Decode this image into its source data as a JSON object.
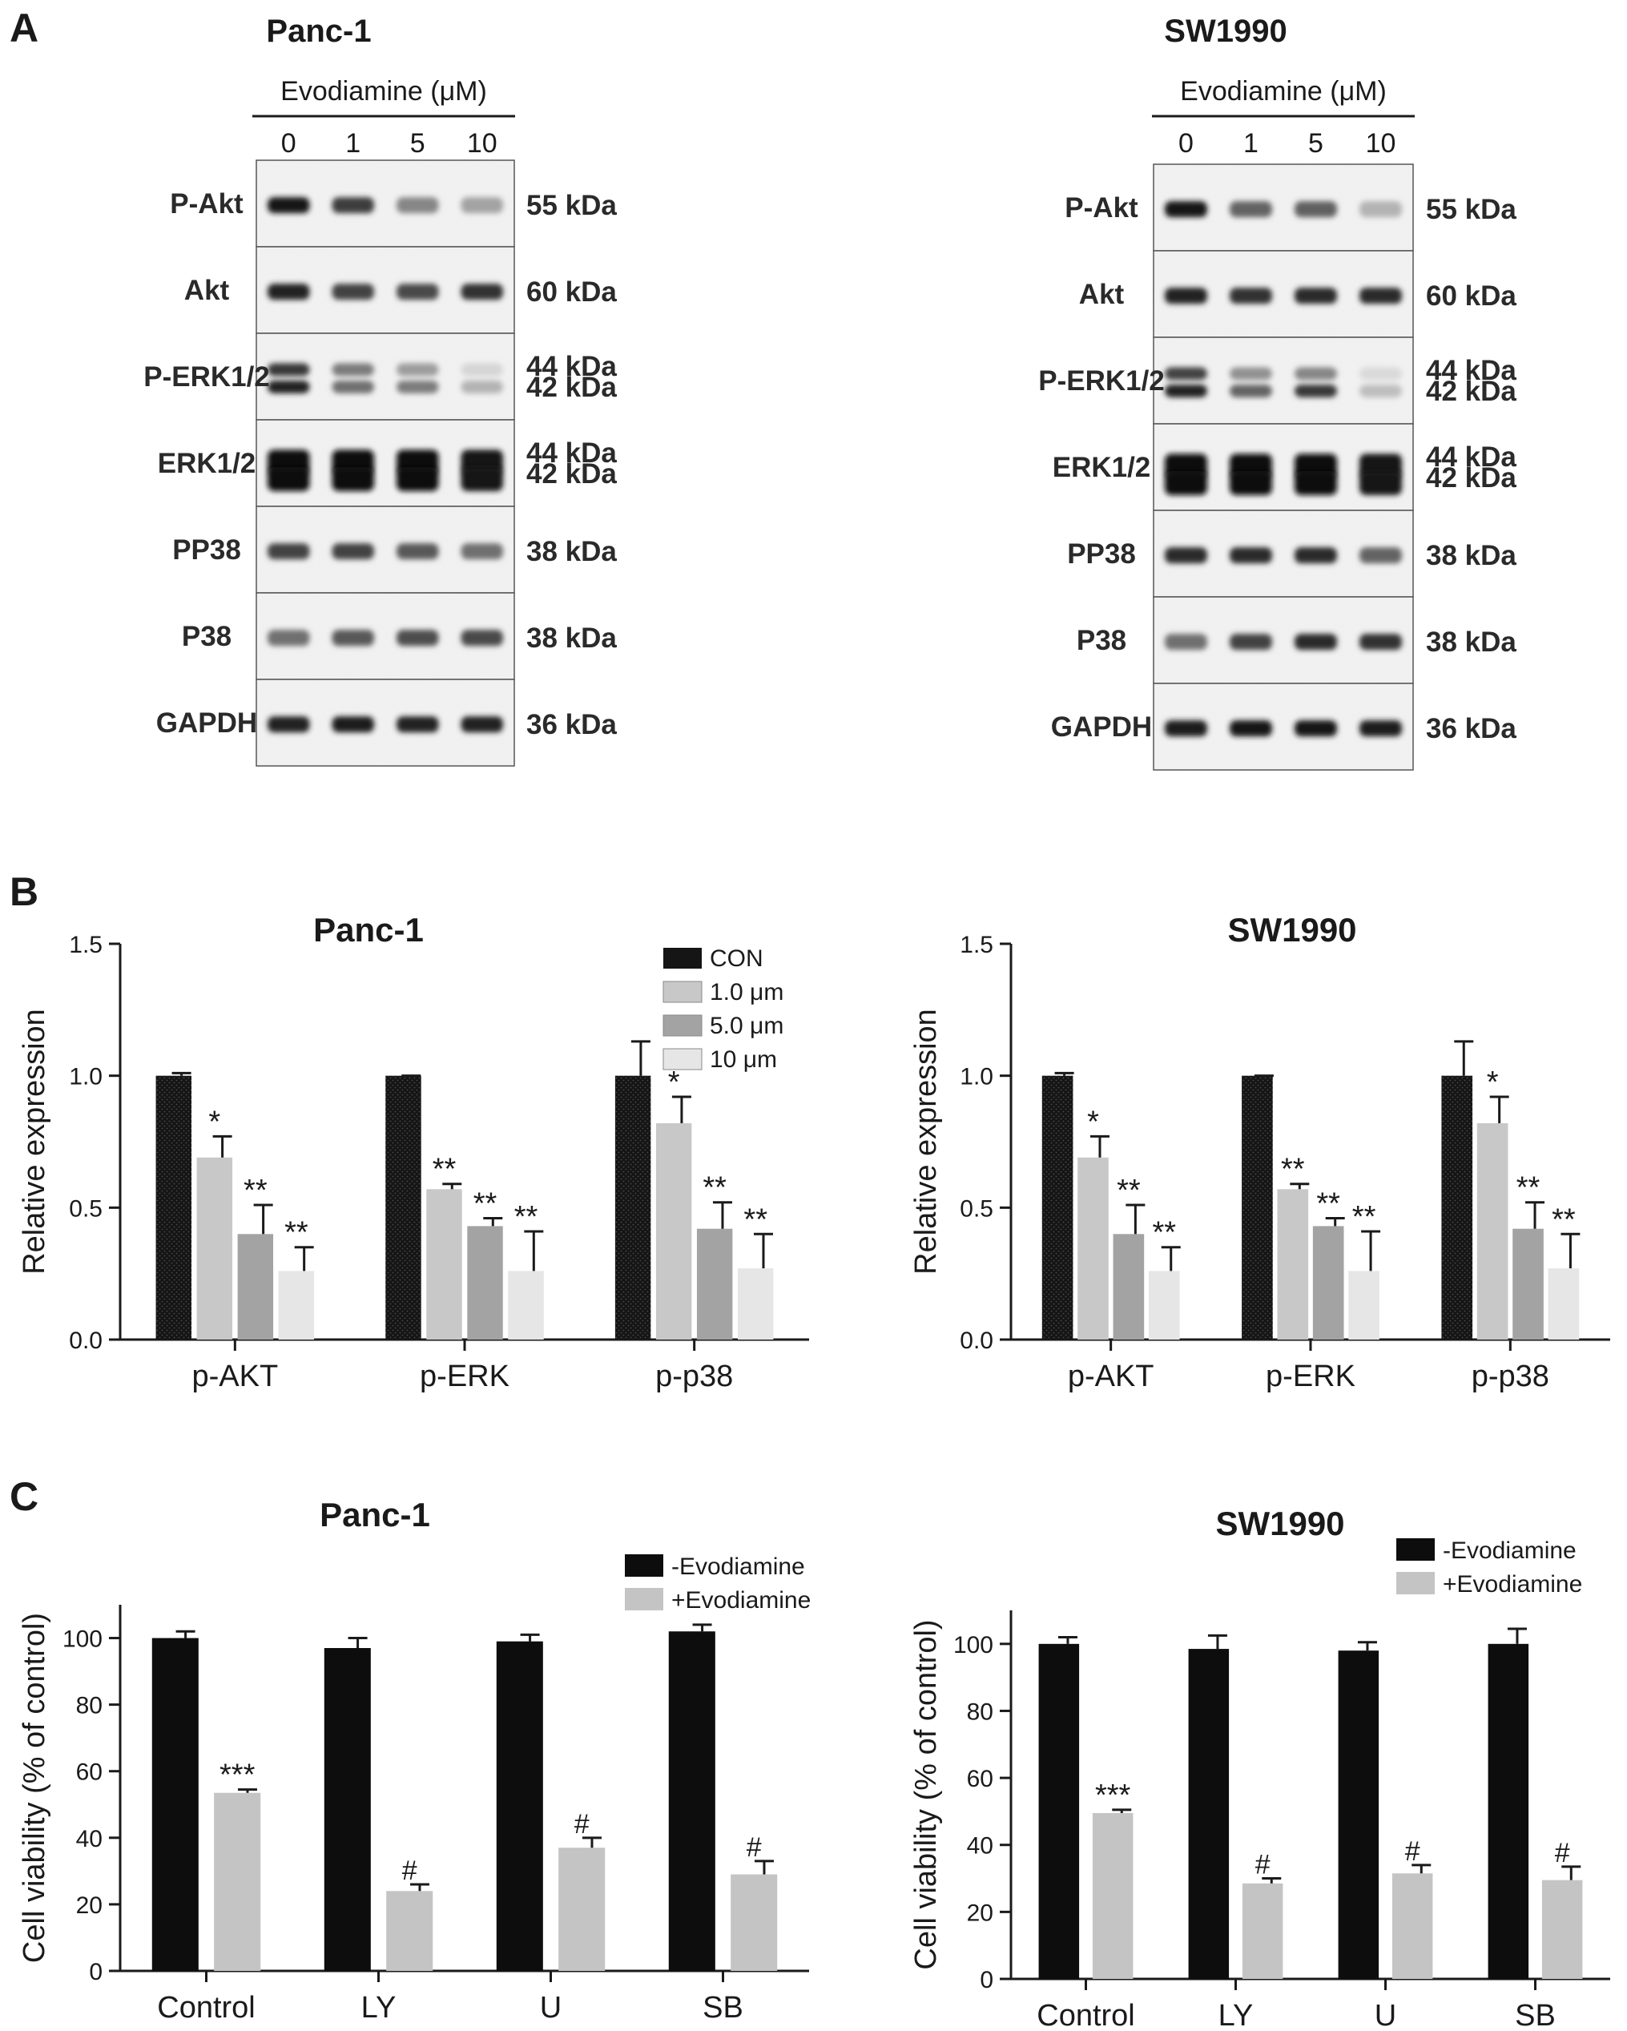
{
  "panel_letters": [
    "A",
    "B",
    "C"
  ],
  "colors": {
    "ink": "#1a1a1a",
    "con": "#151515",
    "dose1": "#c8c8c8",
    "dose5": "#a3a3a3",
    "dose10": "#e6e6e6",
    "minus_evo": "#0d0d0d",
    "plus_evo": "#c4c4c4"
  },
  "blots": [
    {
      "cell_line": "Panc-1",
      "treatment_label": "Evodiamine (μM)",
      "lanes": [
        "0",
        "1",
        "5",
        "10"
      ],
      "rows": [
        {
          "protein": "P-Akt",
          "size_labels": [
            "55 kDa"
          ],
          "bands": [
            [
              0.95,
              0.78,
              0.45,
              0.32
            ]
          ]
        },
        {
          "protein": "Akt",
          "size_labels": [
            "60 kDa"
          ],
          "bands": [
            [
              0.9,
              0.75,
              0.72,
              0.82
            ]
          ]
        },
        {
          "protein": "P-ERK1/2",
          "size_labels": [
            "44 kDa",
            "42 kDa"
          ],
          "bands": [
            [
              0.8,
              0.5,
              0.35,
              0.1
            ],
            [
              0.9,
              0.55,
              0.5,
              0.25
            ]
          ]
        },
        {
          "protein": "ERK1/2",
          "size_labels": [
            "44 kDa",
            "42 kDa"
          ],
          "bands": [
            [
              1.0,
              1.0,
              1.0,
              0.95
            ],
            [
              1.0,
              1.0,
              1.0,
              0.95
            ]
          ]
        },
        {
          "protein": "PP38",
          "size_labels": [
            "38 kDa"
          ],
          "bands": [
            [
              0.75,
              0.75,
              0.65,
              0.55
            ]
          ]
        },
        {
          "protein": "P38",
          "size_labels": [
            "38 kDa"
          ],
          "bands": [
            [
              0.55,
              0.65,
              0.7,
              0.72
            ]
          ]
        },
        {
          "protein": "GAPDH",
          "size_labels": [
            "36 kDa"
          ],
          "bands": [
            [
              0.9,
              0.92,
              0.9,
              0.9
            ]
          ]
        }
      ]
    },
    {
      "cell_line": "SW1990",
      "treatment_label": "Evodiamine (μM)",
      "lanes": [
        "0",
        "1",
        "5",
        "10"
      ],
      "rows": [
        {
          "protein": "P-Akt",
          "size_labels": [
            "55 kDa"
          ],
          "bands": [
            [
              0.95,
              0.6,
              0.62,
              0.25
            ]
          ]
        },
        {
          "protein": "Akt",
          "size_labels": [
            "60 kDa"
          ],
          "bands": [
            [
              0.9,
              0.82,
              0.85,
              0.85
            ]
          ]
        },
        {
          "protein": "P-ERK1/2",
          "size_labels": [
            "44 kDa",
            "42 kDa"
          ],
          "bands": [
            [
              0.75,
              0.4,
              0.45,
              0.08
            ],
            [
              0.9,
              0.6,
              0.8,
              0.2
            ]
          ]
        },
        {
          "protein": "ERK1/2",
          "size_labels": [
            "44 kDa",
            "42 kDa"
          ],
          "bands": [
            [
              1.0,
              1.0,
              1.0,
              0.95
            ],
            [
              1.0,
              1.0,
              1.0,
              0.95
            ]
          ]
        },
        {
          "protein": "PP38",
          "size_labels": [
            "38 kDa"
          ],
          "bands": [
            [
              0.85,
              0.85,
              0.85,
              0.6
            ]
          ]
        },
        {
          "protein": "P38",
          "size_labels": [
            "38 kDa"
          ],
          "bands": [
            [
              0.55,
              0.75,
              0.85,
              0.82
            ]
          ]
        },
        {
          "protein": "GAPDH",
          "size_labels": [
            "36 kDa"
          ],
          "bands": [
            [
              0.92,
              0.95,
              0.95,
              0.92
            ]
          ]
        }
      ]
    }
  ],
  "chart_data": [
    {
      "type": "bar",
      "title": "Panc-1",
      "xlabel": "",
      "ylabel": "Relative expression",
      "ylim": [
        0,
        1.5
      ],
      "yticks": [
        "0.0",
        "0.5",
        "1.0",
        "1.5"
      ],
      "categories": [
        "p-AKT",
        "p-ERK",
        "p-p38"
      ],
      "legend_position": "top-right",
      "series": [
        {
          "name": "CON",
          "values": [
            1.0,
            1.0,
            1.0
          ],
          "errors": [
            0.01,
            0.0,
            0.13
          ],
          "marks": [
            "",
            "",
            ""
          ]
        },
        {
          "name": "1.0 μm",
          "values": [
            0.69,
            0.57,
            0.82
          ],
          "errors": [
            0.08,
            0.02,
            0.1
          ],
          "marks": [
            "*",
            "**",
            "*"
          ]
        },
        {
          "name": "5.0 μm",
          "values": [
            0.4,
            0.43,
            0.42
          ],
          "errors": [
            0.11,
            0.03,
            0.1
          ],
          "marks": [
            "**",
            "**",
            "**"
          ]
        },
        {
          "name": "10 μm",
          "values": [
            0.26,
            0.26,
            0.27
          ],
          "errors": [
            0.09,
            0.15,
            0.13
          ],
          "marks": [
            "**",
            "**",
            "**"
          ]
        }
      ]
    },
    {
      "type": "bar",
      "title": "SW1990",
      "xlabel": "",
      "ylabel": "Relative expression",
      "ylim": [
        0,
        1.5
      ],
      "yticks": [
        "0.0",
        "0.5",
        "1.0",
        "1.5"
      ],
      "categories": [
        "p-AKT",
        "p-ERK",
        "p-p38"
      ],
      "legend_position": "none",
      "series": [
        {
          "name": "CON",
          "values": [
            1.0,
            1.0,
            1.0
          ],
          "errors": [
            0.01,
            0.0,
            0.13
          ],
          "marks": [
            "",
            "",
            ""
          ]
        },
        {
          "name": "1.0 μm",
          "values": [
            0.69,
            0.57,
            0.82
          ],
          "errors": [
            0.08,
            0.02,
            0.1
          ],
          "marks": [
            "*",
            "**",
            "*"
          ]
        },
        {
          "name": "5.0 μm",
          "values": [
            0.4,
            0.43,
            0.42
          ],
          "errors": [
            0.11,
            0.03,
            0.1
          ],
          "marks": [
            "**",
            "**",
            "**"
          ]
        },
        {
          "name": "10 μm",
          "values": [
            0.26,
            0.26,
            0.27
          ],
          "errors": [
            0.09,
            0.15,
            0.13
          ],
          "marks": [
            "**",
            "**",
            "**"
          ]
        }
      ]
    },
    {
      "type": "bar",
      "title": "Panc-1",
      "xlabel": "",
      "ylabel": "Cell viability (% of control)",
      "ylim": [
        0,
        110
      ],
      "yticks": [
        "0",
        "20",
        "40",
        "60",
        "80",
        "100"
      ],
      "categories": [
        "Control",
        "LY",
        "U",
        "SB"
      ],
      "legend_position": "top-right",
      "series": [
        {
          "name": "-Evodiamine",
          "values": [
            100,
            97,
            99,
            102
          ],
          "errors": [
            2,
            3,
            2,
            2
          ],
          "marks": [
            "",
            "",
            "",
            ""
          ]
        },
        {
          "name": "+Evodiamine",
          "values": [
            53.5,
            24,
            37,
            29
          ],
          "errors": [
            1,
            2,
            3,
            4
          ],
          "marks": [
            "***",
            "#",
            "#",
            "#"
          ]
        }
      ]
    },
    {
      "type": "bar",
      "title": "SW1990",
      "xlabel": "",
      "ylabel": "Cell viability (% of control)",
      "ylim": [
        0,
        110
      ],
      "yticks": [
        "0",
        "20",
        "40",
        "60",
        "80",
        "100"
      ],
      "categories": [
        "Control",
        "LY",
        "U",
        "SB"
      ],
      "legend_position": "top-right",
      "series": [
        {
          "name": "-Evodiamine",
          "values": [
            100,
            98.5,
            98,
            100
          ],
          "errors": [
            2,
            4,
            2.5,
            4.5
          ],
          "marks": [
            "",
            "",
            "",
            ""
          ]
        },
        {
          "name": "+Evodiamine",
          "values": [
            49.5,
            28.5,
            31.5,
            29.5
          ],
          "errors": [
            1,
            1.5,
            2.5,
            4
          ],
          "marks": [
            "***",
            "#",
            "#",
            "#"
          ]
        }
      ]
    }
  ]
}
